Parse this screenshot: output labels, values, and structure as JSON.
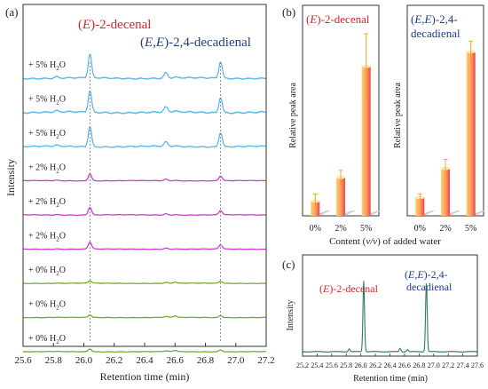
{
  "chart_data": [
    {
      "panel_label": "(a)",
      "type": "line",
      "ylabel": "Intensity",
      "xlabel": "Retention time (min)",
      "xlim": [
        25.6,
        27.2
      ],
      "xticks": [
        "25.6",
        "25.8",
        "26.0",
        "26.2",
        "26.4",
        "26.6",
        "26.8",
        "27.0",
        "27.2"
      ],
      "annotations": {
        "decenal": "(E)-2-decenal",
        "decadienal": "(E,E)-2,4-decadienal"
      },
      "reference_lines_x": [
        26.04,
        26.9
      ],
      "peaks": [
        {
          "x": 25.82,
          "w": 0.012
        },
        {
          "x": 26.04,
          "w": 0.011
        },
        {
          "x": 26.54,
          "w": 0.012
        },
        {
          "x": 26.6,
          "w": 0.012
        },
        {
          "x": 26.9,
          "w": 0.011
        }
      ],
      "traces": [
        {
          "label": "+ 5% H2O",
          "color": "#55b4e9",
          "heights": [
            0.06,
            1.0,
            0.22,
            0.03,
            0.7
          ],
          "noise": 0.035
        },
        {
          "label": "+ 5% H2O",
          "color": "#55b4e9",
          "heights": [
            0.05,
            0.9,
            0.2,
            0.03,
            0.65
          ],
          "noise": 0.04
        },
        {
          "label": "+ 5% H2O",
          "color": "#55b4e9",
          "heights": [
            0.04,
            0.85,
            0.18,
            0.02,
            0.6
          ],
          "noise": 0.03
        },
        {
          "label": "+ 2% H2O",
          "color": "#cc33cc",
          "heights": [
            0.02,
            0.3,
            0.06,
            0.02,
            0.2
          ],
          "noise": 0.012
        },
        {
          "label": "+ 2% H2O",
          "color": "#cc33cc",
          "heights": [
            0.02,
            0.32,
            0.05,
            0.02,
            0.18
          ],
          "noise": 0.012
        },
        {
          "label": "+ 2% H2O",
          "color": "#cc33cc",
          "heights": [
            0.02,
            0.3,
            0.05,
            0.02,
            0.18
          ],
          "noise": 0.012
        },
        {
          "label": "+ 0% H2O",
          "color": "#6aa62a",
          "heights": [
            0.01,
            0.1,
            0.04,
            0.05,
            0.08
          ],
          "noise": 0.01
        },
        {
          "label": "+ 0% H2O",
          "color": "#6aa62a",
          "heights": [
            0.01,
            0.1,
            0.04,
            0.06,
            0.08
          ],
          "noise": 0.01
        },
        {
          "label": "+ 0% H2O",
          "color": "#6aa62a",
          "heights": [
            0.01,
            0.12,
            0.03,
            0.05,
            0.08
          ],
          "noise": 0.01
        }
      ]
    },
    {
      "panel_label": "(b)",
      "type": "bar",
      "ylabel": "Relative peak area",
      "xlabel": "Content (v/v) of added water",
      "categories": [
        "0%",
        "2%",
        "5%"
      ],
      "ylim": [
        0,
        1
      ],
      "series": [
        {
          "name": "(E)-2-decenal",
          "values": [
            0.08,
            0.21,
            0.82
          ],
          "errors": [
            0.04,
            0.04,
            0.18
          ]
        },
        {
          "name": "(E,E)-2,4-decadienal",
          "values": [
            0.1,
            0.26,
            0.9
          ],
          "errors": [
            0.02,
            0.05,
            0.06
          ]
        }
      ]
    },
    {
      "panel_label": "(c)",
      "type": "line",
      "ylabel": "Intensity",
      "xlabel": "Retention time (min)",
      "xlim": [
        25.2,
        27.6
      ],
      "xticks": [
        "25.2",
        "25.4",
        "25.6",
        "25.8",
        "26.0",
        "26.2",
        "26.4",
        "26.6",
        "26.8",
        "27.0",
        "27.2",
        "27.4",
        "27.6"
      ],
      "annotations": {
        "decenal": "(E)-2-decenal",
        "decadienal": "(E,E)-2,4-decadienal"
      },
      "color": "#2e7d5b",
      "peaks": [
        {
          "x": 25.84,
          "h": 0.04,
          "w": 0.012
        },
        {
          "x": 26.04,
          "h": 1.0,
          "w": 0.011
        },
        {
          "x": 26.54,
          "h": 0.05,
          "w": 0.012
        },
        {
          "x": 26.64,
          "h": 0.03,
          "w": 0.012
        },
        {
          "x": 26.9,
          "h": 0.98,
          "w": 0.011
        }
      ]
    }
  ]
}
